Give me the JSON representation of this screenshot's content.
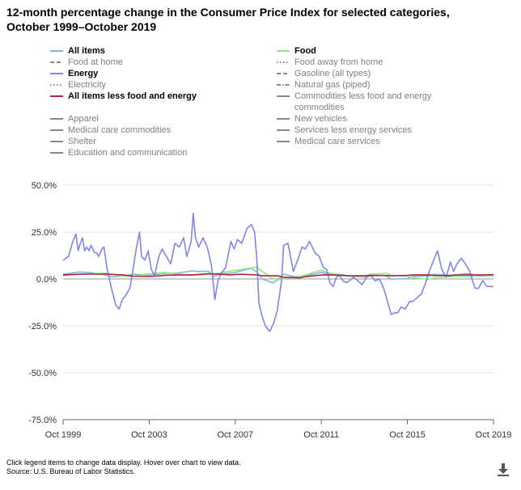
{
  "title_line1": "12-month percentage change in the Consumer Price Index for selected categories,",
  "title_line2": "October 1999–October 2019",
  "legend": [
    {
      "label": "All items",
      "color": "#7cb5ec",
      "dash": "solid",
      "active": true
    },
    {
      "label": "Food",
      "color": "#90ed7d",
      "dash": "solid",
      "active": true
    },
    {
      "label": "Food at home",
      "color": "#888888",
      "dash": "dash",
      "active": false
    },
    {
      "label": "Food away from home",
      "color": "#888888",
      "dash": "dot",
      "active": false
    },
    {
      "label": "Energy",
      "color": "#8085e9",
      "dash": "solid",
      "active": true
    },
    {
      "label": "Gasoline (all types)",
      "color": "#888888",
      "dash": "dash",
      "active": false
    },
    {
      "label": "Electricity",
      "color": "#888888",
      "dash": "dot",
      "active": false
    },
    {
      "label": "Natural gas (piped)",
      "color": "#888888",
      "dash": "dashdot",
      "active": false
    },
    {
      "label": "All items less food and energy",
      "color": "#b0233d",
      "dash": "solid",
      "active": true
    },
    {
      "label": "Commodities less food and energy commodities",
      "color": "#888888",
      "dash": "solid",
      "active": false
    },
    {
      "label": "Apparel",
      "color": "#888888",
      "dash": "solid",
      "active": false
    },
    {
      "label": "New vehicles",
      "color": "#888888",
      "dash": "solid",
      "active": false
    },
    {
      "label": "Medical care commodities",
      "color": "#888888",
      "dash": "solid",
      "active": false
    },
    {
      "label": "Services less energy services",
      "color": "#888888",
      "dash": "solid",
      "active": false
    },
    {
      "label": "Shelter",
      "color": "#888888",
      "dash": "solid",
      "active": false
    },
    {
      "label": "Medical care services",
      "color": "#888888",
      "dash": "solid",
      "active": false
    },
    {
      "label": "Education and communication",
      "color": "#888888",
      "dash": "solid",
      "active": false
    }
  ],
  "footer_line1": "Click legend items to change data display. Hover over chart to view data.",
  "footer_line2": "Source: U.S. Bureau of Labor Statistics.",
  "download_icon": "download-icon",
  "chart_data": {
    "type": "line",
    "xlabel": "",
    "ylabel": "",
    "x_start_year": 1999.75,
    "x_end_year": 2019.75,
    "xlim": [
      1999.75,
      2019.75
    ],
    "ylim": [
      -75,
      50
    ],
    "y_ticks": [
      50,
      25,
      0,
      -25,
      -50,
      -75
    ],
    "y_tick_labels": [
      "50.0%",
      "25.0%",
      "0.0%",
      "-25.0%",
      "-50.0%",
      "-75.0%"
    ],
    "x_ticks": [
      1999.75,
      2003.75,
      2007.75,
      2011.75,
      2015.75,
      2019.75
    ],
    "x_tick_labels": [
      "Oct 1999",
      "Oct 2003",
      "Oct 2007",
      "Oct 2011",
      "Oct 2015",
      "Oct 2019"
    ],
    "series": [
      {
        "name": "All items",
        "color": "#7cb5ec",
        "points": [
          [
            1999.75,
            2.6
          ],
          [
            2000.5,
            3.7
          ],
          [
            2001.0,
            3.5
          ],
          [
            2001.75,
            2.1
          ],
          [
            2002.0,
            1.1
          ],
          [
            2002.75,
            2.0
          ],
          [
            2003.0,
            2.6
          ],
          [
            2003.75,
            2.0
          ],
          [
            2004.5,
            3.0
          ],
          [
            2005.0,
            3.0
          ],
          [
            2005.75,
            4.3
          ],
          [
            2006.0,
            4.0
          ],
          [
            2006.5,
            4.1
          ],
          [
            2006.75,
            1.3
          ],
          [
            2007.0,
            2.4
          ],
          [
            2007.75,
            3.5
          ],
          [
            2008.0,
            4.3
          ],
          [
            2008.5,
            5.6
          ],
          [
            2008.75,
            3.7
          ],
          [
            2009.0,
            0.0
          ],
          [
            2009.5,
            -2.1
          ],
          [
            2009.75,
            -0.2
          ],
          [
            2010.0,
            2.6
          ],
          [
            2010.5,
            1.2
          ],
          [
            2011.0,
            1.6
          ],
          [
            2011.75,
            3.5
          ],
          [
            2012.0,
            2.9
          ],
          [
            2012.75,
            2.2
          ],
          [
            2013.0,
            1.6
          ],
          [
            2013.75,
            1.0
          ],
          [
            2014.0,
            1.6
          ],
          [
            2014.5,
            2.0
          ],
          [
            2014.75,
            1.7
          ],
          [
            2015.0,
            -0.1
          ],
          [
            2015.75,
            0.2
          ],
          [
            2016.0,
            1.4
          ],
          [
            2016.75,
            1.6
          ],
          [
            2017.0,
            2.5
          ],
          [
            2017.75,
            2.0
          ],
          [
            2018.0,
            2.1
          ],
          [
            2018.5,
            2.9
          ],
          [
            2018.75,
            2.5
          ],
          [
            2019.0,
            1.6
          ],
          [
            2019.75,
            1.8
          ]
        ]
      },
      {
        "name": "Food",
        "color": "#90ed7d",
        "points": [
          [
            1999.75,
            2.0
          ],
          [
            2000.5,
            2.5
          ],
          [
            2001.0,
            2.8
          ],
          [
            2001.75,
            3.1
          ],
          [
            2002.5,
            1.5
          ],
          [
            2003.0,
            1.4
          ],
          [
            2003.75,
            2.8
          ],
          [
            2004.5,
            3.5
          ],
          [
            2005.0,
            2.6
          ],
          [
            2006.0,
            2.2
          ],
          [
            2006.75,
            2.5
          ],
          [
            2007.5,
            4.2
          ],
          [
            2008.0,
            5.0
          ],
          [
            2008.75,
            6.3
          ],
          [
            2009.0,
            4.0
          ],
          [
            2009.5,
            0.2
          ],
          [
            2009.75,
            -0.6
          ],
          [
            2010.0,
            0.2
          ],
          [
            2010.75,
            1.4
          ],
          [
            2011.0,
            2.1
          ],
          [
            2011.75,
            4.7
          ],
          [
            2012.0,
            3.5
          ],
          [
            2012.75,
            1.8
          ],
          [
            2013.0,
            1.5
          ],
          [
            2013.75,
            1.3
          ],
          [
            2014.0,
            2.5
          ],
          [
            2014.75,
            3.0
          ],
          [
            2015.0,
            2.0
          ],
          [
            2015.75,
            1.5
          ],
          [
            2016.0,
            0.6
          ],
          [
            2016.75,
            -0.2
          ],
          [
            2017.0,
            0.5
          ],
          [
            2017.75,
            1.3
          ],
          [
            2018.0,
            1.4
          ],
          [
            2018.75,
            1.2
          ],
          [
            2019.0,
            2.0
          ],
          [
            2019.75,
            2.1
          ]
        ]
      },
      {
        "name": "Energy",
        "color": "#8085e9",
        "points": [
          [
            1999.75,
            10
          ],
          [
            2000.0,
            12
          ],
          [
            2000.2,
            20
          ],
          [
            2000.35,
            24
          ],
          [
            2000.45,
            15
          ],
          [
            2000.55,
            19
          ],
          [
            2000.65,
            22
          ],
          [
            2000.75,
            15
          ],
          [
            2000.85,
            17
          ],
          [
            2000.95,
            15
          ],
          [
            2001.05,
            18
          ],
          [
            2001.2,
            14
          ],
          [
            2001.3,
            14
          ],
          [
            2001.4,
            12
          ],
          [
            2001.55,
            16
          ],
          [
            2001.65,
            17
          ],
          [
            2001.8,
            5
          ],
          [
            2002.0,
            -5
          ],
          [
            2002.2,
            -14
          ],
          [
            2002.35,
            -16
          ],
          [
            2002.5,
            -11
          ],
          [
            2002.65,
            -9
          ],
          [
            2002.85,
            -5
          ],
          [
            2003.0,
            5
          ],
          [
            2003.15,
            16
          ],
          [
            2003.3,
            25
          ],
          [
            2003.4,
            12
          ],
          [
            2003.55,
            10
          ],
          [
            2003.7,
            15
          ],
          [
            2003.85,
            5
          ],
          [
            2004.0,
            2
          ],
          [
            2004.2,
            12
          ],
          [
            2004.35,
            16
          ],
          [
            2004.55,
            12
          ],
          [
            2004.75,
            8
          ],
          [
            2004.95,
            19
          ],
          [
            2005.15,
            17
          ],
          [
            2005.35,
            22
          ],
          [
            2005.5,
            12
          ],
          [
            2005.7,
            20
          ],
          [
            2005.8,
            35
          ],
          [
            2005.9,
            22
          ],
          [
            2006.05,
            17
          ],
          [
            2006.25,
            22
          ],
          [
            2006.45,
            17
          ],
          [
            2006.65,
            7
          ],
          [
            2006.8,
            -11
          ],
          [
            2006.95,
            -1
          ],
          [
            2007.1,
            3
          ],
          [
            2007.3,
            6
          ],
          [
            2007.55,
            20
          ],
          [
            2007.7,
            16
          ],
          [
            2007.85,
            21
          ],
          [
            2008.05,
            19
          ],
          [
            2008.3,
            27
          ],
          [
            2008.5,
            29
          ],
          [
            2008.65,
            25
          ],
          [
            2008.75,
            11
          ],
          [
            2008.85,
            -13
          ],
          [
            2009.0,
            -20
          ],
          [
            2009.15,
            -25
          ],
          [
            2009.35,
            -28
          ],
          [
            2009.55,
            -23
          ],
          [
            2009.7,
            -17
          ],
          [
            2009.9,
            -1
          ],
          [
            2010.0,
            18
          ],
          [
            2010.2,
            19
          ],
          [
            2010.45,
            4
          ],
          [
            2010.65,
            10
          ],
          [
            2010.85,
            17
          ],
          [
            2011.0,
            16
          ],
          [
            2011.2,
            20
          ],
          [
            2011.45,
            14
          ],
          [
            2011.65,
            12
          ],
          [
            2011.85,
            6
          ],
          [
            2012.0,
            5
          ],
          [
            2012.15,
            -2
          ],
          [
            2012.3,
            -4
          ],
          [
            2012.45,
            1
          ],
          [
            2012.6,
            2
          ],
          [
            2012.75,
            -1
          ],
          [
            2012.9,
            -2
          ],
          [
            2013.05,
            -1
          ],
          [
            2013.25,
            1
          ],
          [
            2013.45,
            -1
          ],
          [
            2013.65,
            -3
          ],
          [
            2013.85,
            1
          ],
          [
            2014.05,
            2
          ],
          [
            2014.25,
            -1
          ],
          [
            2014.45,
            0
          ],
          [
            2014.65,
            -5
          ],
          [
            2014.85,
            -13
          ],
          [
            2015.0,
            -19
          ],
          [
            2015.15,
            -18
          ],
          [
            2015.3,
            -18
          ],
          [
            2015.45,
            -15
          ],
          [
            2015.65,
            -16
          ],
          [
            2015.85,
            -12
          ],
          [
            2016.0,
            -12
          ],
          [
            2016.2,
            -10
          ],
          [
            2016.4,
            -8
          ],
          [
            2016.6,
            -2
          ],
          [
            2016.8,
            5
          ],
          [
            2017.0,
            11
          ],
          [
            2017.15,
            15
          ],
          [
            2017.35,
            5
          ],
          [
            2017.55,
            1
          ],
          [
            2017.75,
            9
          ],
          [
            2017.9,
            4
          ],
          [
            2018.05,
            8
          ],
          [
            2018.25,
            11
          ],
          [
            2018.45,
            8
          ],
          [
            2018.65,
            4
          ],
          [
            2018.8,
            -2
          ],
          [
            2018.9,
            -5
          ],
          [
            2019.05,
            -5
          ],
          [
            2019.25,
            -1
          ],
          [
            2019.45,
            -4
          ],
          [
            2019.6,
            -4
          ],
          [
            2019.75,
            -4
          ]
        ]
      },
      {
        "name": "All items less food and energy",
        "color": "#b0233d",
        "points": [
          [
            1999.75,
            2.1
          ],
          [
            2000.5,
            2.5
          ],
          [
            2001.0,
            2.6
          ],
          [
            2001.75,
            2.6
          ],
          [
            2002.5,
            2.2
          ],
          [
            2003.0,
            1.5
          ],
          [
            2003.75,
            1.3
          ],
          [
            2004.5,
            2.0
          ],
          [
            2005.0,
            2.1
          ],
          [
            2005.75,
            2.1
          ],
          [
            2006.5,
            2.8
          ],
          [
            2006.75,
            2.7
          ],
          [
            2007.5,
            2.2
          ],
          [
            2008.0,
            2.5
          ],
          [
            2008.75,
            2.2
          ],
          [
            2009.0,
            1.7
          ],
          [
            2009.75,
            1.7
          ],
          [
            2010.0,
            0.9
          ],
          [
            2010.75,
            0.6
          ],
          [
            2011.0,
            1.2
          ],
          [
            2011.75,
            2.1
          ],
          [
            2012.0,
            2.2
          ],
          [
            2012.75,
            2.0
          ],
          [
            2013.0,
            1.7
          ],
          [
            2013.75,
            1.7
          ],
          [
            2014.0,
            1.9
          ],
          [
            2014.75,
            1.8
          ],
          [
            2015.0,
            1.7
          ],
          [
            2015.75,
            1.9
          ],
          [
            2016.0,
            2.2
          ],
          [
            2016.75,
            2.1
          ],
          [
            2017.0,
            1.8
          ],
          [
            2017.75,
            1.8
          ],
          [
            2018.0,
            2.1
          ],
          [
            2018.75,
            2.1
          ],
          [
            2019.0,
            2.1
          ],
          [
            2019.75,
            2.3
          ]
        ]
      }
    ]
  }
}
